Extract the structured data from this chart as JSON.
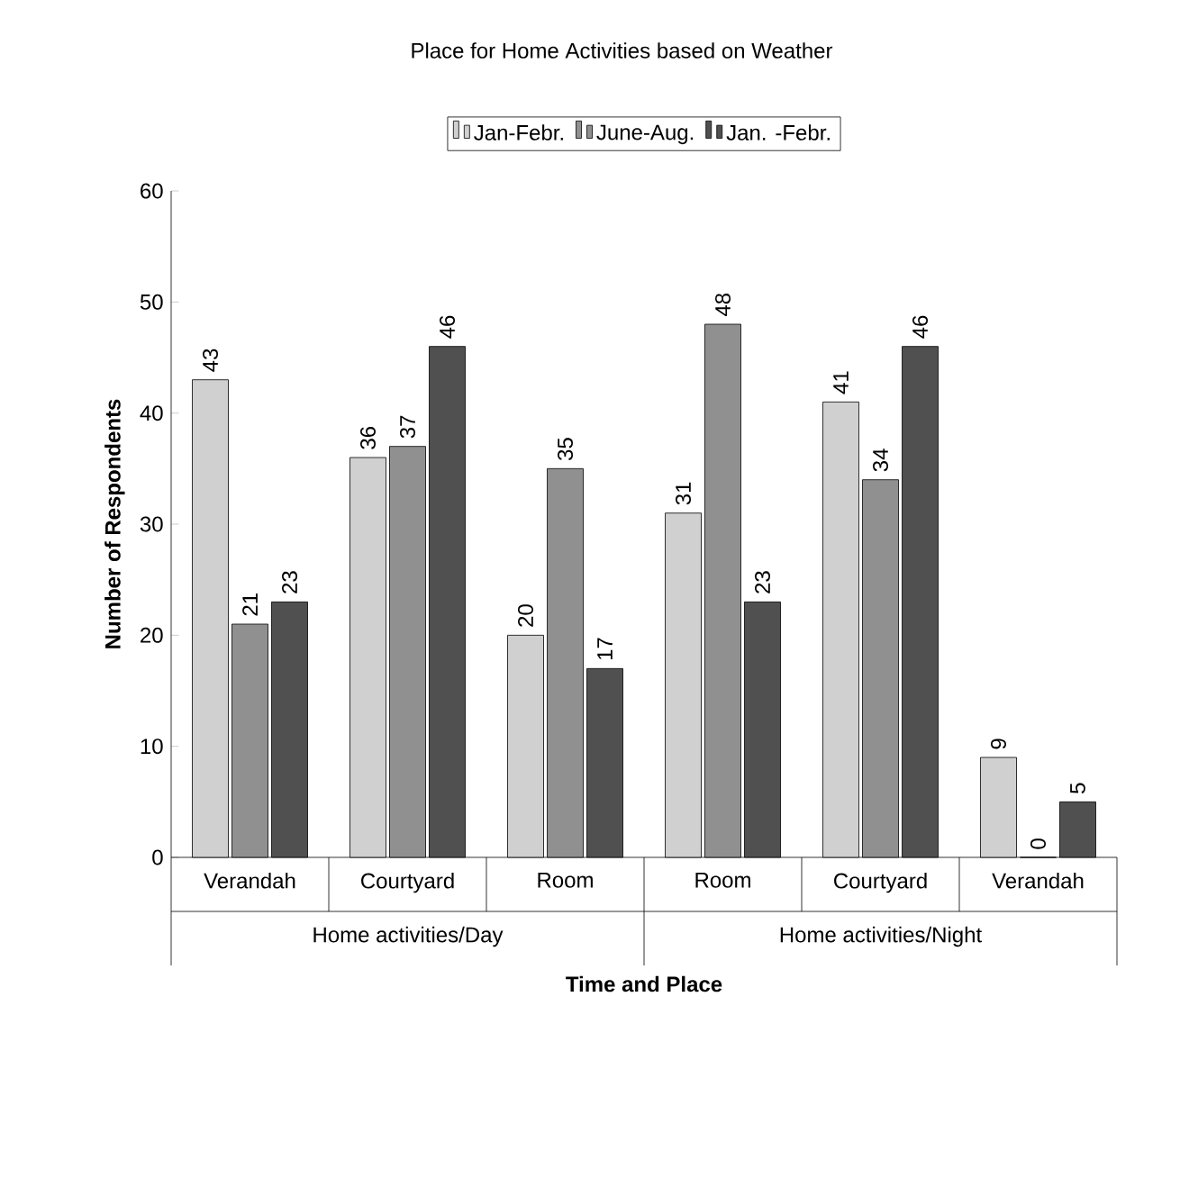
{
  "chart_data": {
    "type": "bar",
    "title": "Place for Home Activities based on Weather",
    "xlabel": "Time and Place",
    "ylabel": "Number of Respondents",
    "categories": [
      "Verandah",
      "Courtyard",
      "Room",
      "Room",
      "Courtyard",
      "Verandah"
    ],
    "series": [
      {
        "name": "Jan-Febr.",
        "color": "#d0d0d0",
        "values": [
          43,
          36,
          20,
          31,
          41,
          9
        ]
      },
      {
        "name": "June-Aug.",
        "color": "#909090",
        "values": [
          21,
          37,
          35,
          48,
          34,
          0
        ]
      },
      {
        "name": "Jan. -Febr.",
        "color": "#505050",
        "values": [
          23,
          46,
          17,
          23,
          46,
          5
        ]
      }
    ],
    "annotations": [
      "Home activities/Day",
      "Home activities/Night"
    ],
    "ylim": [
      0,
      60
    ],
    "yticks": [
      0,
      10,
      20,
      30,
      40,
      50,
      60
    ],
    "data_labels": true,
    "legend": "top",
    "grid": false
  }
}
